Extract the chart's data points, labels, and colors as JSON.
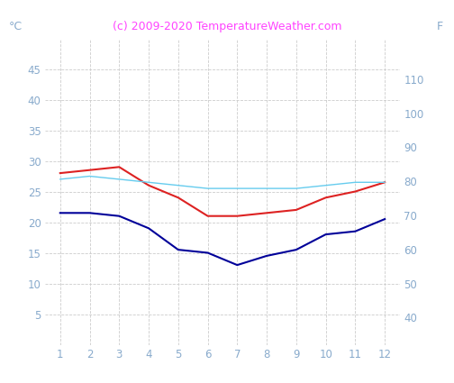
{
  "months": [
    1,
    2,
    3,
    4,
    5,
    6,
    7,
    8,
    9,
    10,
    11,
    12
  ],
  "air_max_c": [
    28,
    28.5,
    29,
    26,
    24,
    21,
    21,
    21.5,
    22,
    24,
    25,
    26.5
  ],
  "air_min_c": [
    21.5,
    21.5,
    21,
    19,
    15.5,
    15,
    13,
    14.5,
    15.5,
    18,
    18.5,
    20.5
  ],
  "water_c": [
    27,
    27.5,
    27,
    26.5,
    26,
    25.5,
    25.5,
    25.5,
    25.5,
    26,
    26.5,
    26.5
  ],
  "line_color_red": "#dd2222",
  "line_color_blue": "#000099",
  "line_color_cyan": "#66ccee",
  "title": "(c) 2009-2020 TemperatureWeather.com",
  "title_color": "#ff44ff",
  "label_left": "°C",
  "label_right": "F",
  "ylim_left": [
    0,
    50
  ],
  "ylim_right": [
    32,
    122
  ],
  "yticks_left": [
    5,
    10,
    15,
    20,
    25,
    30,
    35,
    40,
    45
  ],
  "yticks_right": [
    40,
    50,
    60,
    70,
    80,
    90,
    100,
    110
  ],
  "xlim": [
    0.5,
    12.5
  ],
  "tick_color": "#88aacc",
  "grid_color": "#cccccc",
  "background_color": "#ffffff",
  "title_fontsize": 9,
  "tick_fontsize": 8.5,
  "label_fontsize": 9
}
